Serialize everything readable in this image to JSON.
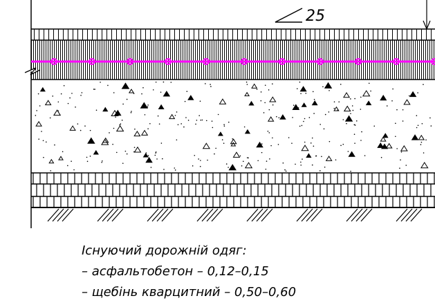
{
  "slope": {
    "value_label": "25"
  },
  "caption": {
    "title": "Існуючий дорожній одяг:",
    "items": [
      "– асфальтобетон – 0,12–0,15",
      "– щебінь кварцитний – 0,50–0,60"
    ]
  }
}
